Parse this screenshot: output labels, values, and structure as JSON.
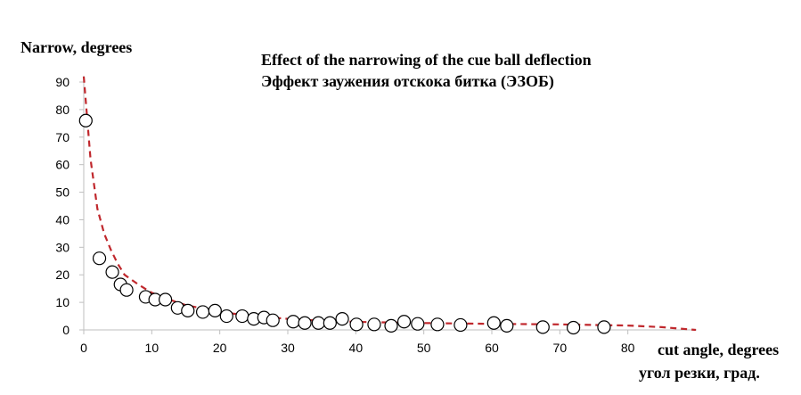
{
  "chart_data": {
    "type": "scatter",
    "title": "Effect of the narrowing of the cue ball deflection",
    "subtitle": "Эффект заужения отскока битка (ЭЗОБ)",
    "ylabel": "Narrow, degrees",
    "xlabel": "cut angle, degrees",
    "xlabel_secondary": "угол резки, град.",
    "xlim": [
      0,
      90
    ],
    "ylim": [
      0,
      90
    ],
    "x_ticks": [
      0,
      10,
      20,
      30,
      40,
      50,
      60,
      70,
      80
    ],
    "y_ticks": [
      0,
      10,
      20,
      30,
      40,
      50,
      60,
      70,
      80,
      90
    ],
    "grid": false,
    "series": [
      {
        "type": "scatter",
        "marker": "open-circle",
        "color": "#000000",
        "points": [
          [
            0.3,
            76
          ],
          [
            2.3,
            26
          ],
          [
            4.2,
            21
          ],
          [
            5.4,
            16.5
          ],
          [
            6.3,
            14.5
          ],
          [
            9.1,
            12
          ],
          [
            10.5,
            11
          ],
          [
            12,
            11
          ],
          [
            13.8,
            8
          ],
          [
            15.3,
            7
          ],
          [
            17.5,
            6.5
          ],
          [
            19.3,
            7
          ],
          [
            21,
            5
          ],
          [
            23.3,
            5
          ],
          [
            25,
            4
          ],
          [
            26.5,
            4.5
          ],
          [
            27.8,
            3.5
          ],
          [
            30.8,
            3
          ],
          [
            32.5,
            2.5
          ],
          [
            34.5,
            2.5
          ],
          [
            36.2,
            2.5
          ],
          [
            38,
            4
          ],
          [
            40.1,
            2
          ],
          [
            42.7,
            2
          ],
          [
            45.2,
            1.5
          ],
          [
            47.1,
            3
          ],
          [
            49.1,
            2.2
          ],
          [
            52,
            2
          ],
          [
            55.4,
            1.8
          ],
          [
            60.3,
            2.5
          ],
          [
            62.2,
            1.5
          ],
          [
            67.5,
            1
          ],
          [
            72,
            0.8
          ],
          [
            76.5,
            1
          ]
        ]
      },
      {
        "type": "line",
        "style": "dashed",
        "color": "#c0282d",
        "points": [
          [
            0,
            92
          ],
          [
            1,
            62
          ],
          [
            2,
            44
          ],
          [
            3,
            35
          ],
          [
            4,
            29
          ],
          [
            5,
            24
          ],
          [
            6,
            20
          ],
          [
            8,
            16.5
          ],
          [
            10,
            13.5
          ],
          [
            12,
            11.5
          ],
          [
            15,
            9
          ],
          [
            20,
            6.5
          ],
          [
            25,
            5
          ],
          [
            30,
            4
          ],
          [
            35,
            3.3
          ],
          [
            40,
            2.9
          ],
          [
            50,
            2.5
          ],
          [
            60,
            2.2
          ],
          [
            70,
            2
          ],
          [
            80,
            1.6
          ],
          [
            85,
            1
          ],
          [
            90,
            0
          ]
        ]
      }
    ]
  }
}
